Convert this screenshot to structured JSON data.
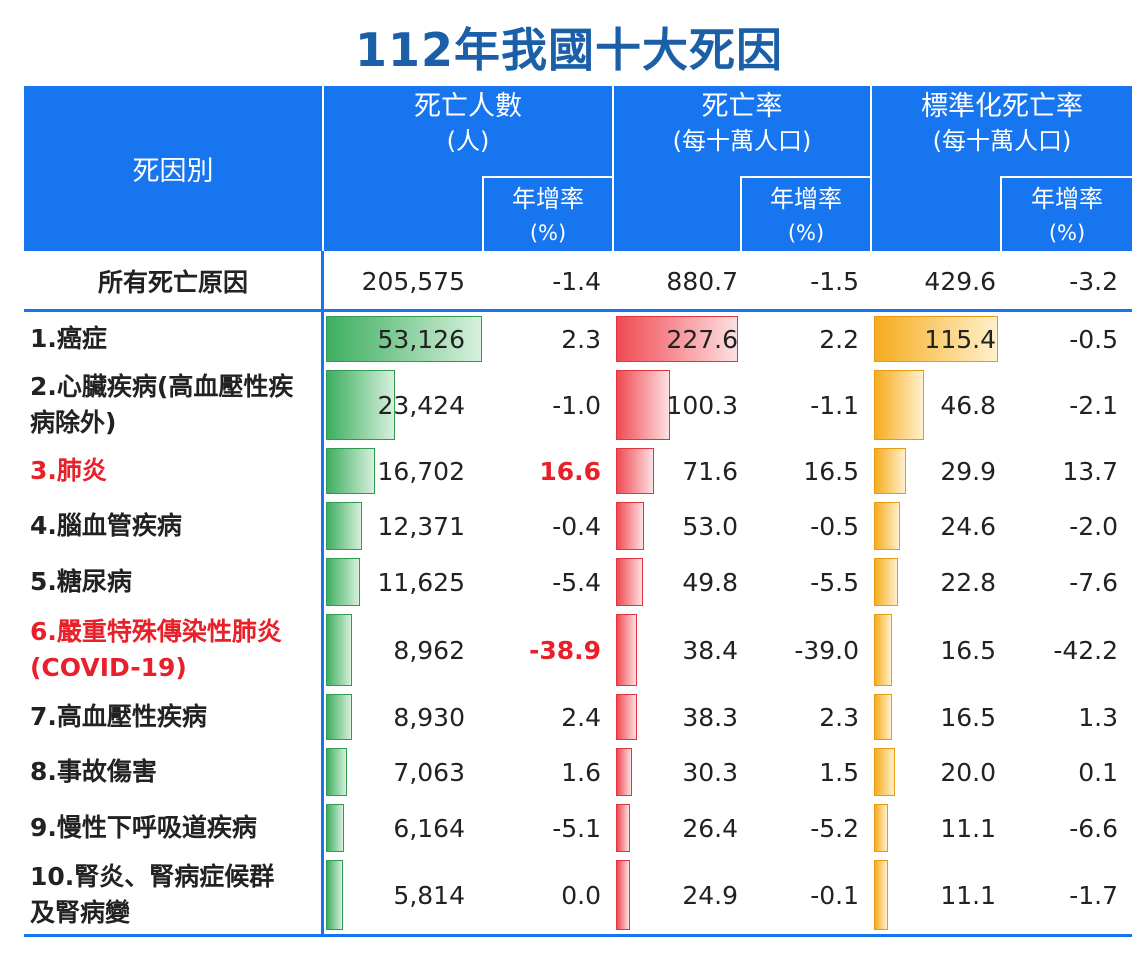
{
  "title": "112年我國十大死因",
  "header": {
    "cause": "死因別",
    "deaths": "死亡人數",
    "deaths_unit": "(人)",
    "rate": "死亡率",
    "rate_unit": "(每十萬人口)",
    "std_rate": "標準化死亡率",
    "std_rate_unit": "(每十萬人口)",
    "growth": "年增率",
    "growth_unit": "(%)"
  },
  "total": {
    "label": "所有死亡原因",
    "deaths": "205,575",
    "deaths_growth": "-1.4",
    "rate": "880.7",
    "rate_growth": "-1.5",
    "std_rate": "429.6",
    "std_rate_growth": "-3.2"
  },
  "rows": [
    {
      "label": "1.癌症",
      "deaths": "53,126",
      "deaths_value": 53126,
      "deaths_growth": "2.3",
      "rate": "227.6",
      "rate_value": 227.6,
      "rate_growth": "2.2",
      "std_rate": "115.4",
      "std_value": 115.4,
      "std_rate_growth": "-0.5",
      "highlight": false
    },
    {
      "label": "2.心臟疾病(高血壓性疾病除外)",
      "deaths": "23,424",
      "deaths_value": 23424,
      "deaths_growth": "-1.0",
      "rate": "100.3",
      "rate_value": 100.3,
      "rate_growth": "-1.1",
      "std_rate": "46.8",
      "std_value": 46.8,
      "std_rate_growth": "-2.1",
      "highlight": false
    },
    {
      "label": "3.肺炎",
      "deaths": "16,702",
      "deaths_value": 16702,
      "deaths_growth": "16.6",
      "rate": "71.6",
      "rate_value": 71.6,
      "rate_growth": "16.5",
      "std_rate": "29.9",
      "std_value": 29.9,
      "std_rate_growth": "13.7",
      "highlight": true
    },
    {
      "label": "4.腦血管疾病",
      "deaths": "12,371",
      "deaths_value": 12371,
      "deaths_growth": "-0.4",
      "rate": "53.0",
      "rate_value": 53.0,
      "rate_growth": "-0.5",
      "std_rate": "24.6",
      "std_value": 24.6,
      "std_rate_growth": "-2.0",
      "highlight": false
    },
    {
      "label": "5.糖尿病",
      "deaths": "11,625",
      "deaths_value": 11625,
      "deaths_growth": "-5.4",
      "rate": "49.8",
      "rate_value": 49.8,
      "rate_growth": "-5.5",
      "std_rate": "22.8",
      "std_value": 22.8,
      "std_rate_growth": "-7.6",
      "highlight": false
    },
    {
      "label": "6.嚴重特殊傳染性肺炎(COVID-19)",
      "deaths": "8,962",
      "deaths_value": 8962,
      "deaths_growth": "-38.9",
      "rate": "38.4",
      "rate_value": 38.4,
      "rate_growth": "-39.0",
      "std_rate": "16.5",
      "std_value": 16.5,
      "std_rate_growth": "-42.2",
      "highlight": true
    },
    {
      "label": "7.高血壓性疾病",
      "deaths": "8,930",
      "deaths_value": 8930,
      "deaths_growth": "2.4",
      "rate": "38.3",
      "rate_value": 38.3,
      "rate_growth": "2.3",
      "std_rate": "16.5",
      "std_value": 16.5,
      "std_rate_growth": "1.3",
      "highlight": false
    },
    {
      "label": "8.事故傷害",
      "deaths": "7,063",
      "deaths_value": 7063,
      "deaths_growth": "1.6",
      "rate": "30.3",
      "rate_value": 30.3,
      "rate_growth": "1.5",
      "std_rate": "20.0",
      "std_value": 20.0,
      "std_rate_growth": "0.1",
      "highlight": false
    },
    {
      "label": "9.慢性下呼吸道疾病",
      "deaths": "6,164",
      "deaths_value": 6164,
      "deaths_growth": "-5.1",
      "rate": "26.4",
      "rate_value": 26.4,
      "rate_growth": "-5.2",
      "std_rate": "11.1",
      "std_value": 11.1,
      "std_rate_growth": "-6.6",
      "highlight": false
    },
    {
      "label": "10.腎炎、腎病症候群及腎病變",
      "deaths": "5,814",
      "deaths_value": 5814,
      "deaths_growth": "0.0",
      "rate": "24.9",
      "rate_value": 24.9,
      "rate_growth": "-0.1",
      "std_rate": "11.1",
      "std_value": 11.1,
      "std_rate_growth": "-1.7",
      "highlight": false
    }
  ],
  "colors": {
    "header_bg": "#1875f0",
    "title": "#1a5fa8",
    "highlight_text": "#e8202a",
    "bar_deaths": "#3dae5f",
    "bar_rate": "#f04a52",
    "bar_std_rate": "#f6ac1d"
  }
}
